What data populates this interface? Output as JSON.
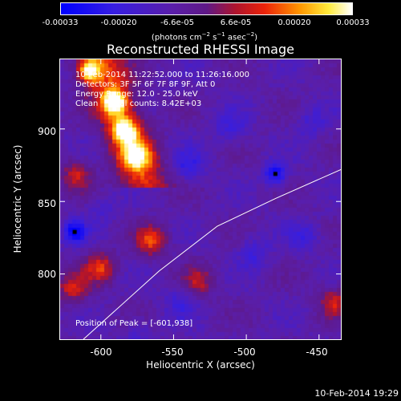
{
  "colorbar": {
    "ticks": [
      "-0.00033",
      "-0.00020",
      "-6.6e-05",
      "6.6e-05",
      "0.00020",
      "0.00033"
    ],
    "min": -0.00033,
    "max": 0.00033
  },
  "chart_data": {
    "type": "heatmap",
    "title": "Reconstructed RHESSI Image",
    "xlabel": "Heliocentric X (arcsec)",
    "ylabel": "Heliocentric Y (arcsec)",
    "xlim": [
      -628,
      -435
    ],
    "ylim": [
      755,
      948
    ],
    "xticks": [
      -600,
      -550,
      -500,
      -450
    ],
    "yticks": [
      800,
      850,
      900
    ],
    "annotations": {
      "time_range": "10-Feb-2014 11:22:52.000 to 11:26:16.000",
      "detectors": "Detectors: 3F 5F 6F 7F 8F 9F, Att 0",
      "energy": "Energy Range: 12.0 - 25.0 keV",
      "clean": "Clean    Total counts: 8.42E+03",
      "peak": "Position of Peak = [-601,938]"
    },
    "peak_position": [
      -601,
      938
    ],
    "limb_curve": [
      [
        -612,
        755
      ],
      [
        -560,
        802
      ],
      [
        -520,
        833
      ],
      [
        -480,
        852
      ],
      [
        -435,
        872
      ]
    ],
    "colormap": "blue-purple-red-yellow-white",
    "heat_regions": [
      {
        "x": -591,
        "y": 918,
        "intensity": 0.00033
      },
      {
        "x": -584,
        "y": 899,
        "intensity": 0.00028
      },
      {
        "x": -608,
        "y": 940,
        "intensity": 0.00031
      },
      {
        "x": -576,
        "y": 882,
        "intensity": 0.00018
      },
      {
        "x": -565,
        "y": 823,
        "intensity": 0.00016
      },
      {
        "x": -600,
        "y": 804,
        "intensity": 0.00014
      },
      {
        "x": -617,
        "y": 868,
        "intensity": 0.0001
      },
      {
        "x": -533,
        "y": 795,
        "intensity": 8e-05
      },
      {
        "x": -440,
        "y": 780,
        "intensity": 0.0001
      },
      {
        "x": -619,
        "y": 790,
        "intensity": 0.00012
      }
    ],
    "cool_regions": [
      {
        "x": -480,
        "y": 869,
        "intensity": -0.00033
      },
      {
        "x": -618,
        "y": 829,
        "intensity": -0.00033
      },
      {
        "x": -540,
        "y": 875,
        "intensity": -0.00022
      },
      {
        "x": -510,
        "y": 900,
        "intensity": -0.0002
      },
      {
        "x": -455,
        "y": 905,
        "intensity": -0.00018
      },
      {
        "x": -495,
        "y": 815,
        "intensity": -0.0002
      },
      {
        "x": -545,
        "y": 780,
        "intensity": -0.00018
      },
      {
        "x": -600,
        "y": 845,
        "intensity": -0.00015
      },
      {
        "x": -460,
        "y": 825,
        "intensity": -0.00018
      },
      {
        "x": -575,
        "y": 760,
        "intensity": -0.00014
      }
    ]
  },
  "footer": {
    "stamp": "10-Feb-2014 19:29"
  }
}
